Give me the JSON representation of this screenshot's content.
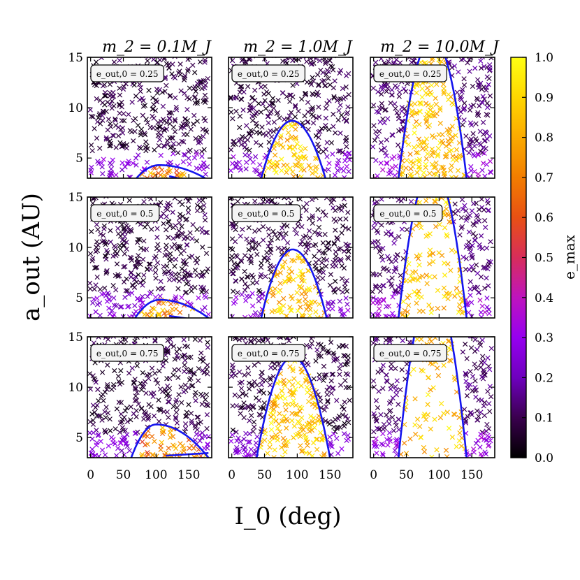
{
  "chart_data": {
    "type": "scatter",
    "layout": "3x3 grid of panels sharing axes",
    "xlabel": "I_0 (deg)",
    "ylabel": "a_out (AU)",
    "xlim": [
      -5,
      185
    ],
    "ylim": [
      3,
      15
    ],
    "xticks": [
      0,
      50,
      100,
      150
    ],
    "yticks": [
      5,
      10,
      15
    ],
    "column_titles": [
      "m_2 = 0.1M_J",
      "m_2 = 1.0M_J",
      "m_2 = 10.0M_J"
    ],
    "row_annotations": [
      "e_out,0 = 0.25",
      "e_out,0 = 0.5",
      "e_out,0 = 0.75"
    ],
    "colorbar": {
      "label": "e_max",
      "min": 0.0,
      "max": 1.0,
      "ticks": [
        "0.0",
        "0.1",
        "0.2",
        "0.3",
        "0.4",
        "0.5",
        "0.6",
        "0.7",
        "0.8",
        "0.9",
        "1.0"
      ],
      "colormap": "gnuplot-like (black-purple-red-orange-yellow)"
    },
    "marker": "x",
    "curve_color": "#1515ee",
    "panels": [
      {
        "m2": "0.1",
        "eout": "0.25",
        "region": {
          "type": "lobe",
          "I_min": 70,
          "I_max": 175,
          "a_top": 4.3,
          "a_bottom": 3.0,
          "peak_I": 105
        }
      },
      {
        "m2": "1.0",
        "eout": "0.25",
        "region": {
          "type": "arch",
          "I_min": 45,
          "I_max": 143,
          "a_top": 8.7,
          "peak_I": 92
        }
      },
      {
        "m2": "10.0",
        "eout": "0.25",
        "region": {
          "type": "arch",
          "I_min": 38,
          "I_max": 142,
          "a_top": 17,
          "peak_I": 90
        }
      },
      {
        "m2": "0.1",
        "eout": "0.5",
        "region": {
          "type": "lobe",
          "I_min": 68,
          "I_max": 180,
          "a_top": 4.8,
          "a_bottom": 3.0,
          "peak_I": 105
        }
      },
      {
        "m2": "1.0",
        "eout": "0.5",
        "region": {
          "type": "arch",
          "I_min": 45,
          "I_max": 145,
          "a_top": 9.8,
          "peak_I": 93
        }
      },
      {
        "m2": "10.0",
        "eout": "0.5",
        "region": {
          "type": "arch",
          "I_min": 38,
          "I_max": 142,
          "a_top": 18,
          "peak_I": 90
        }
      },
      {
        "m2": "0.1",
        "eout": "0.75",
        "region": {
          "type": "lobe",
          "I_min": 62,
          "I_max": 180,
          "a_top": 6.3,
          "a_bottom": 3.0,
          "peak_I": 100
        }
      },
      {
        "m2": "1.0",
        "eout": "0.75",
        "region": {
          "type": "arch",
          "I_min": 38,
          "I_max": 150,
          "a_top": 13,
          "peak_I": 93
        }
      },
      {
        "m2": "10.0",
        "eout": "0.75",
        "region": {
          "type": "arch",
          "I_min": 38,
          "I_max": 142,
          "a_top": 20,
          "peak_I": 90
        }
      }
    ]
  }
}
